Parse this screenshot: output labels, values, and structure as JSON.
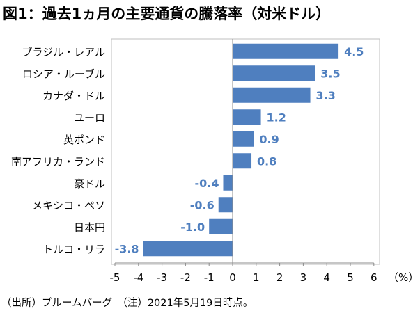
{
  "title": "図1：過去1ヵ月の主要通貨の騰落率（対米ドル）",
  "source_note": "（出所）ブルームバーグ　（注）2021年5月19日時点。",
  "colors": {
    "bar": "#4f7fbf",
    "label": "#4f7fbf",
    "axis": "#8c8c8c",
    "frame": "#bfbfbf"
  },
  "chart_data": {
    "type": "bar",
    "orientation": "horizontal",
    "categories": [
      "ブラジル・レアル",
      "ロシア・ルーブル",
      "カナダ・ドル",
      "ユーロ",
      "英ポンド",
      "南アフリカ・ランド",
      "豪ドル",
      "メキシコ・ペソ",
      "日本円",
      "トルコ・リラ"
    ],
    "values": [
      4.5,
      3.5,
      3.3,
      1.2,
      0.9,
      0.8,
      -0.4,
      -0.6,
      -1.0,
      -3.8
    ],
    "data_labels": [
      "4.5",
      "3.5",
      "3.3",
      "1.2",
      "0.9",
      "0.8",
      "-0.4",
      "-0.6",
      "-1.0",
      "-3.8"
    ],
    "xlim": [
      -5,
      6
    ],
    "xticks": [
      -5,
      -4,
      -3,
      -2,
      -1,
      0,
      1,
      2,
      3,
      4,
      5,
      6
    ],
    "xunit": "（%）",
    "grid": false,
    "legend": "none"
  }
}
